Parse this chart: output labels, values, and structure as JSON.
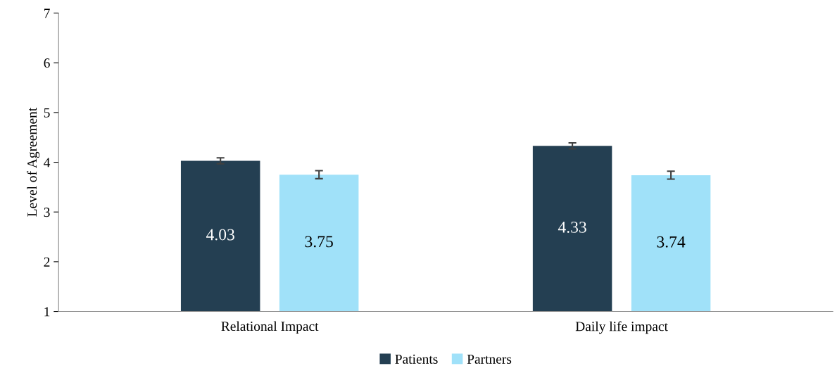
{
  "chart_data": {
    "type": "bar",
    "ylabel": "Level of Agreement",
    "categories": [
      "Relational Impact",
      "Daily life impact"
    ],
    "series": [
      {
        "name": "Patients",
        "color": "#243f52",
        "values": [
          4.03,
          4.33
        ],
        "errors": [
          0.06,
          0.06
        ]
      },
      {
        "name": "Partners",
        "color": "#a0e1f9",
        "values": [
          3.75,
          3.74
        ],
        "errors": [
          0.08,
          0.08
        ]
      }
    ],
    "ylim": [
      1,
      7
    ],
    "yticks": [
      1,
      2,
      3,
      4,
      5,
      6,
      7
    ],
    "data_labels": true,
    "legend": "bottom",
    "grid": false
  }
}
